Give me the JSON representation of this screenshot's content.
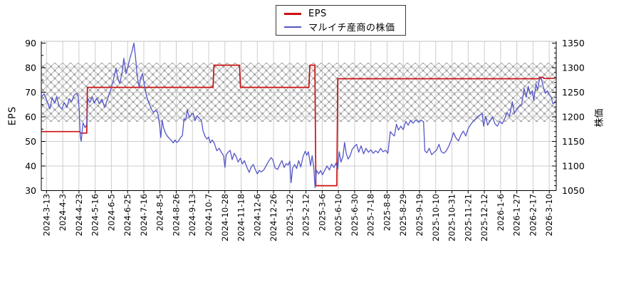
{
  "legend": {
    "items": [
      {
        "label": "EPS",
        "color": "#cc1111",
        "thickness": 3
      },
      {
        "label": "マルイチ産商の株価",
        "color": "#5456c8",
        "thickness": 2
      }
    ]
  },
  "chart_data": {
    "type": "line",
    "title": "",
    "left_axis": {
      "title": "EPS",
      "min": 30,
      "max": 90,
      "major_tick_step": 10,
      "minor_tick_step": 5,
      "tick_labels": [
        "30",
        "40",
        "50",
        "60",
        "70",
        "80",
        "90"
      ]
    },
    "right_axis": {
      "title": "株価",
      "min": 1050,
      "max": 1350,
      "major_tick_step": 50,
      "minor_tick_step": 10,
      "tick_labels": [
        "1050",
        "1100",
        "1150",
        "1200",
        "1250",
        "1300",
        "1350"
      ]
    },
    "x_tick_labels": [
      "2024-3-13",
      "2024-4-3",
      "2024-4-23",
      "2024-5-16",
      "2024-6-5",
      "2024-6-25",
      "2024-7-16",
      "2024-8-5",
      "2024-8-26",
      "2024-9-13",
      "2024-10-7",
      "2024-10-28",
      "2024-11-18",
      "2024-12-6",
      "2024-12-26",
      "2025-1-22",
      "2025-2-12",
      "2025-3-6",
      "2025-6-10",
      "2025-6-30",
      "2025-7-18",
      "2025-8-8",
      "2025-8-29",
      "2025-9-19",
      "2025-10-10",
      "2025-10-31",
      "2025-11-21",
      "2025-12-12",
      "2026-1-6",
      "2026-1-27",
      "2026-2-17",
      "2026-3-10"
    ],
    "grid": {
      "vertical": true,
      "horizontal": true,
      "color": "#cdcdcd"
    },
    "hatched_band": {
      "price_range": [
        1190,
        1310
      ],
      "eps_range": [
        58,
        82.5
      ],
      "pattern": "cross-hatch",
      "color": "#b5b5b5"
    },
    "series": [
      {
        "name": "EPS",
        "axis": "left",
        "color": "#cc1111",
        "width": 1.7,
        "style": "step",
        "points": [
          [
            -0.32,
            54
          ],
          [
            2.05,
            54
          ],
          [
            2.1,
            53.4
          ],
          [
            2.48,
            53.4
          ],
          [
            2.52,
            72
          ],
          [
            10.27,
            72
          ],
          [
            10.33,
            81
          ],
          [
            11.9,
            81
          ],
          [
            11.96,
            72
          ],
          [
            16.18,
            72
          ],
          [
            16.24,
            81
          ],
          [
            16.55,
            81
          ],
          [
            16.61,
            32
          ],
          [
            17.9,
            32
          ],
          [
            17.96,
            75.5
          ],
          [
            30.35,
            75.5
          ],
          [
            30.4,
            76.1
          ],
          [
            30.62,
            76.1
          ],
          [
            30.68,
            75.6
          ],
          [
            31.32,
            75.7
          ]
        ]
      },
      {
        "name": "マルイチ産商の株価",
        "axis": "right",
        "color": "#5456c8",
        "width": 1.3,
        "style": "line",
        "points": [
          [
            -0.32,
            1240
          ],
          [
            -0.15,
            1247
          ],
          [
            0.03,
            1232
          ],
          [
            0.2,
            1216
          ],
          [
            0.35,
            1239
          ],
          [
            0.5,
            1228
          ],
          [
            0.62,
            1241
          ],
          [
            0.78,
            1222
          ],
          [
            0.95,
            1216
          ],
          [
            1.1,
            1229
          ],
          [
            1.25,
            1219
          ],
          [
            1.4,
            1237
          ],
          [
            1.55,
            1231
          ],
          [
            1.7,
            1244
          ],
          [
            1.85,
            1248
          ],
          [
            1.95,
            1242
          ],
          [
            2.02,
            1212
          ],
          [
            2.08,
            1161
          ],
          [
            2.14,
            1150
          ],
          [
            2.25,
            1188
          ],
          [
            2.38,
            1178
          ],
          [
            2.48,
            1185
          ],
          [
            2.55,
            1237
          ],
          [
            2.68,
            1229
          ],
          [
            2.82,
            1241
          ],
          [
            2.95,
            1228
          ],
          [
            3.1,
            1238
          ],
          [
            3.25,
            1227
          ],
          [
            3.42,
            1236
          ],
          [
            3.58,
            1219
          ],
          [
            3.75,
            1235
          ],
          [
            3.95,
            1254
          ],
          [
            4.1,
            1272
          ],
          [
            4.28,
            1299
          ],
          [
            4.42,
            1275
          ],
          [
            4.52,
            1268
          ],
          [
            4.65,
            1288
          ],
          [
            4.77,
            1319
          ],
          [
            4.9,
            1288
          ],
          [
            5.02,
            1302
          ],
          [
            5.15,
            1320
          ],
          [
            5.28,
            1334
          ],
          [
            5.39,
            1350
          ],
          [
            5.5,
            1318
          ],
          [
            5.6,
            1281
          ],
          [
            5.71,
            1261
          ],
          [
            5.82,
            1280
          ],
          [
            5.92,
            1288
          ],
          [
            6.05,
            1262
          ],
          [
            6.18,
            1241
          ],
          [
            6.32,
            1228
          ],
          [
            6.49,
            1214
          ],
          [
            6.6,
            1209
          ],
          [
            6.72,
            1213
          ],
          [
            6.85,
            1209
          ],
          [
            6.97,
            1185
          ],
          [
            7.05,
            1158
          ],
          [
            7.13,
            1193
          ],
          [
            7.22,
            1178
          ],
          [
            7.32,
            1168
          ],
          [
            7.45,
            1161
          ],
          [
            7.58,
            1156
          ],
          [
            7.7,
            1152
          ],
          [
            7.82,
            1147
          ],
          [
            7.92,
            1153
          ],
          [
            8.02,
            1148
          ],
          [
            8.12,
            1150
          ],
          [
            8.25,
            1157
          ],
          [
            8.38,
            1162
          ],
          [
            8.48,
            1197
          ],
          [
            8.58,
            1193
          ],
          [
            8.68,
            1214
          ],
          [
            8.8,
            1199
          ],
          [
            8.92,
            1204
          ],
          [
            9.05,
            1207
          ],
          [
            9.15,
            1192
          ],
          [
            9.28,
            1202
          ],
          [
            9.42,
            1197
          ],
          [
            9.55,
            1193
          ],
          [
            9.65,
            1172
          ],
          [
            9.78,
            1160
          ],
          [
            9.9,
            1155
          ],
          [
            10.0,
            1159
          ],
          [
            10.1,
            1147
          ],
          [
            10.22,
            1153
          ],
          [
            10.35,
            1146
          ],
          [
            10.5,
            1131
          ],
          [
            10.65,
            1136
          ],
          [
            10.8,
            1127
          ],
          [
            10.92,
            1121
          ],
          [
            11.0,
            1097
          ],
          [
            11.08,
            1123
          ],
          [
            11.2,
            1128
          ],
          [
            11.32,
            1132
          ],
          [
            11.45,
            1113
          ],
          [
            11.58,
            1126
          ],
          [
            11.7,
            1119
          ],
          [
            11.82,
            1108
          ],
          [
            11.95,
            1116
          ],
          [
            12.08,
            1104
          ],
          [
            12.2,
            1111
          ],
          [
            12.35,
            1098
          ],
          [
            12.5,
            1087
          ],
          [
            12.62,
            1098
          ],
          [
            12.75,
            1103
          ],
          [
            12.88,
            1092
          ],
          [
            13.0,
            1084
          ],
          [
            13.12,
            1091
          ],
          [
            13.25,
            1088
          ],
          [
            13.4,
            1092
          ],
          [
            13.55,
            1101
          ],
          [
            13.7,
            1110
          ],
          [
            13.85,
            1117
          ],
          [
            13.95,
            1113
          ],
          [
            14.1,
            1096
          ],
          [
            14.25,
            1093
          ],
          [
            14.4,
            1104
          ],
          [
            14.52,
            1111
          ],
          [
            14.65,
            1097
          ],
          [
            14.78,
            1105
          ],
          [
            14.9,
            1102
          ],
          [
            15.0,
            1110
          ],
          [
            15.08,
            1066
          ],
          [
            15.18,
            1096
          ],
          [
            15.3,
            1103
          ],
          [
            15.42,
            1095
          ],
          [
            15.55,
            1111
          ],
          [
            15.68,
            1098
          ],
          [
            15.82,
            1119
          ],
          [
            15.95,
            1130
          ],
          [
            16.05,
            1122
          ],
          [
            16.15,
            1129
          ],
          [
            16.28,
            1101
          ],
          [
            16.38,
            1121
          ],
          [
            16.48,
            1098
          ],
          [
            16.56,
            1056
          ],
          [
            16.65,
            1091
          ],
          [
            16.78,
            1084
          ],
          [
            16.9,
            1091
          ],
          [
            17.02,
            1082
          ],
          [
            17.15,
            1091
          ],
          [
            17.3,
            1100
          ],
          [
            17.45,
            1092
          ],
          [
            17.58,
            1104
          ],
          [
            17.72,
            1097
          ],
          [
            17.85,
            1106
          ],
          [
            17.95,
            1094
          ],
          [
            18.05,
            1129
          ],
          [
            18.15,
            1108
          ],
          [
            18.28,
            1119
          ],
          [
            18.38,
            1148
          ],
          [
            18.48,
            1126
          ],
          [
            18.6,
            1114
          ],
          [
            18.72,
            1121
          ],
          [
            18.85,
            1134
          ],
          [
            19.0,
            1140
          ],
          [
            19.12,
            1144
          ],
          [
            19.25,
            1128
          ],
          [
            19.4,
            1141
          ],
          [
            19.55,
            1125
          ],
          [
            19.7,
            1136
          ],
          [
            19.85,
            1128
          ],
          [
            20.0,
            1133
          ],
          [
            20.15,
            1126
          ],
          [
            20.3,
            1131
          ],
          [
            20.45,
            1127
          ],
          [
            20.6,
            1136
          ],
          [
            20.75,
            1129
          ],
          [
            20.9,
            1132
          ],
          [
            21.05,
            1126
          ],
          [
            21.2,
            1170
          ],
          [
            21.32,
            1165
          ],
          [
            21.45,
            1161
          ],
          [
            21.58,
            1185
          ],
          [
            21.7,
            1173
          ],
          [
            21.85,
            1181
          ],
          [
            22.0,
            1174
          ],
          [
            22.15,
            1191
          ],
          [
            22.3,
            1183
          ],
          [
            22.45,
            1193
          ],
          [
            22.6,
            1187
          ],
          [
            22.78,
            1194
          ],
          [
            22.95,
            1189
          ],
          [
            23.1,
            1193
          ],
          [
            23.25,
            1190
          ],
          [
            23.33,
            1131
          ],
          [
            23.45,
            1127
          ],
          [
            23.6,
            1136
          ],
          [
            23.75,
            1123
          ],
          [
            23.9,
            1128
          ],
          [
            24.05,
            1132
          ],
          [
            24.2,
            1144
          ],
          [
            24.35,
            1129
          ],
          [
            24.5,
            1126
          ],
          [
            24.65,
            1131
          ],
          [
            24.8,
            1140
          ],
          [
            24.95,
            1152
          ],
          [
            25.1,
            1168
          ],
          [
            25.25,
            1157
          ],
          [
            25.4,
            1151
          ],
          [
            25.55,
            1163
          ],
          [
            25.7,
            1171
          ],
          [
            25.85,
            1161
          ],
          [
            26.0,
            1176
          ],
          [
            26.15,
            1184
          ],
          [
            26.3,
            1191
          ],
          [
            26.45,
            1196
          ],
          [
            26.6,
            1201
          ],
          [
            26.75,
            1204
          ],
          [
            26.87,
            1207
          ],
          [
            26.95,
            1181
          ],
          [
            27.08,
            1201
          ],
          [
            27.2,
            1183
          ],
          [
            27.35,
            1192
          ],
          [
            27.5,
            1200
          ],
          [
            27.65,
            1186
          ],
          [
            27.8,
            1181
          ],
          [
            27.95,
            1191
          ],
          [
            28.1,
            1186
          ],
          [
            28.25,
            1196
          ],
          [
            28.4,
            1209
          ],
          [
            28.55,
            1201
          ],
          [
            28.72,
            1231
          ],
          [
            28.85,
            1207
          ],
          [
            29.0,
            1216
          ],
          [
            29.15,
            1222
          ],
          [
            29.3,
            1226
          ],
          [
            29.45,
            1258
          ],
          [
            29.58,
            1240
          ],
          [
            29.7,
            1262
          ],
          [
            29.82,
            1246
          ],
          [
            29.95,
            1253
          ],
          [
            30.05,
            1233
          ],
          [
            30.18,
            1267
          ],
          [
            30.28,
            1255
          ],
          [
            30.38,
            1274
          ],
          [
            30.5,
            1280
          ],
          [
            30.62,
            1263
          ],
          [
            30.75,
            1248
          ],
          [
            30.88,
            1253
          ],
          [
            31.0,
            1246
          ],
          [
            31.12,
            1240
          ],
          [
            31.22,
            1227
          ],
          [
            31.32,
            1229
          ]
        ]
      }
    ]
  }
}
